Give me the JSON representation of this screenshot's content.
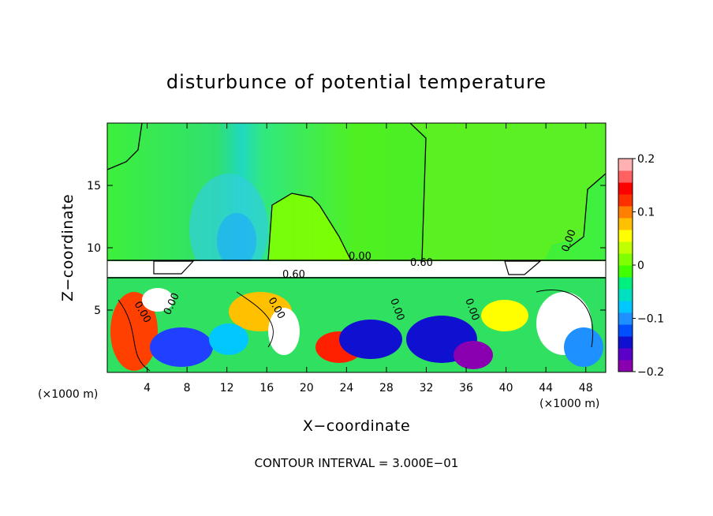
{
  "chart_data": {
    "type": "heatmap",
    "title": "disturbunce of potential temperature",
    "xlabel": "X−coordinate",
    "ylabel": "Z−coordinate",
    "x_unit_left": "(×1000 m)",
    "x_unit_right": "(×1000 m)",
    "xlim": [
      0,
      50
    ],
    "ylim": [
      0,
      20
    ],
    "x_ticks": [
      "4",
      "8",
      "12",
      "16",
      "20",
      "24",
      "28",
      "32",
      "36",
      "40",
      "44",
      "48"
    ],
    "x_tick_values": [
      4,
      8,
      12,
      16,
      20,
      24,
      28,
      32,
      36,
      40,
      44,
      48
    ],
    "y_ticks": [
      "5",
      "10",
      "15"
    ],
    "y_tick_values": [
      5,
      10,
      15
    ],
    "colorbar": {
      "min": -0.2,
      "max": 0.2,
      "tick_labels": [
        "0.2",
        "0.1",
        "0",
        "−0.1",
        "−0.2"
      ],
      "tick_values": [
        0.2,
        0.1,
        0,
        -0.1,
        -0.2
      ],
      "colors": [
        "#8a00b0",
        "#5a00c8",
        "#1010d0",
        "#0050ff",
        "#1e90ff",
        "#00c8ff",
        "#00e0c0",
        "#00f080",
        "#40ff00",
        "#80ff00",
        "#c0ff00",
        "#ffff00",
        "#ffc000",
        "#ff8000",
        "#ff3000",
        "#ff0000",
        "#ff6060",
        "#ffb0b0"
      ]
    },
    "contour_labels": [
      "0.00",
      "0.60",
      "0.60",
      "0.00",
      "0.00",
      "0.00",
      "0.00",
      "0.00",
      "0.00"
    ],
    "grid": false,
    "footer": "CONTOUR INTERVAL = 3.000E−01"
  }
}
